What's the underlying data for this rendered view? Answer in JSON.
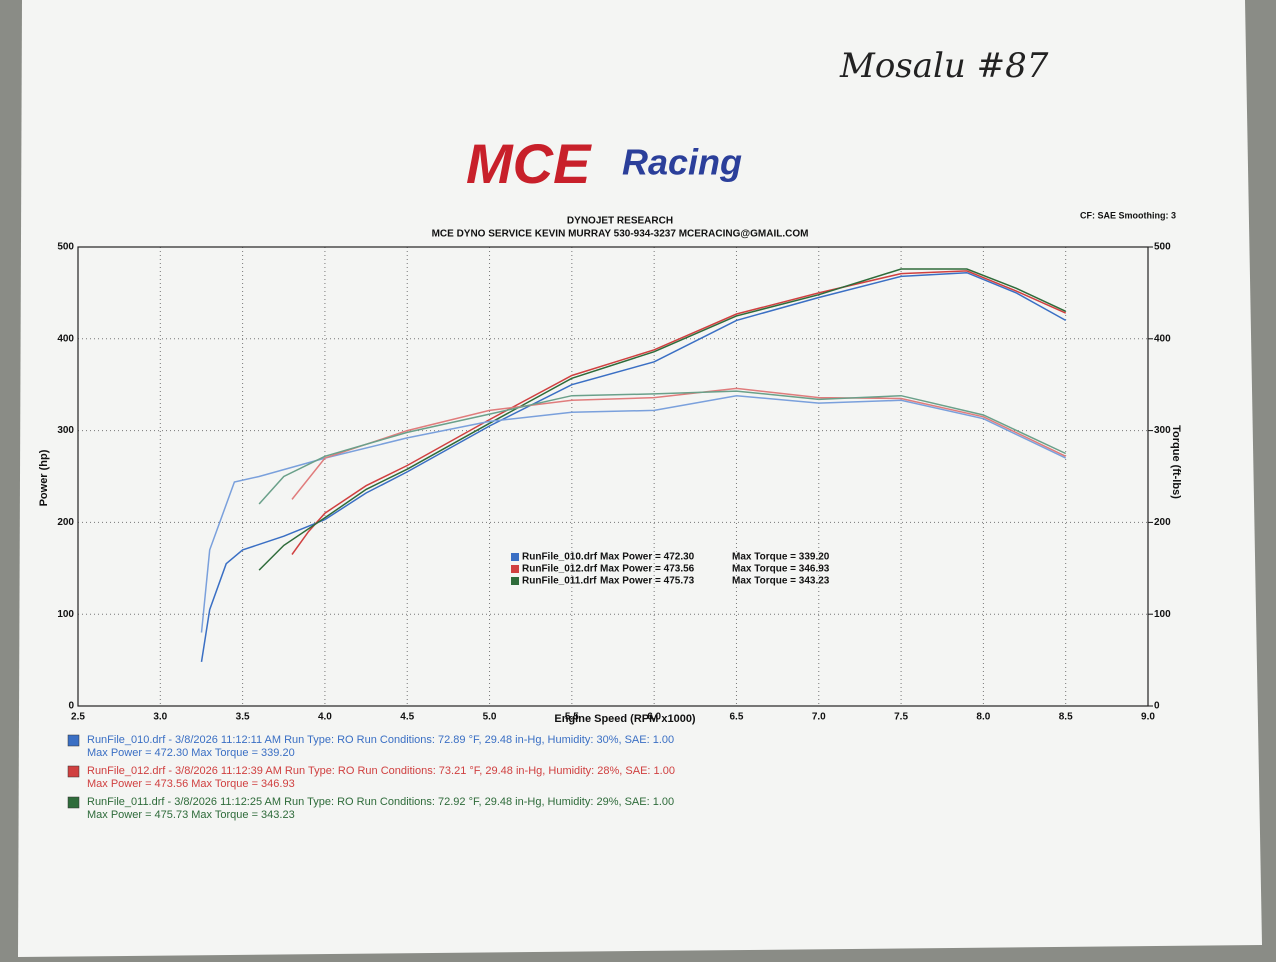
{
  "handwritten_note": "Mosalu #87",
  "logo": {
    "brand": "MCE",
    "script": "Racing"
  },
  "chart_data": {
    "type": "line",
    "title": "DYNOJET RESEARCH",
    "subtitle": "MCE DYNO SERVICE KEVIN MURRAY 530-934-3237 MCERACING@GMAIL.COM",
    "settings_note": "CF: SAE Smoothing: 3",
    "x_label": "Engine Speed (RPM x1000)",
    "y_label": "Power (hp)",
    "y2_label": "Torque (ft-lbs)",
    "grid": true,
    "xlim": [
      2.5,
      9.0
    ],
    "xticks": [
      2.5,
      {
        "value": 3,
        "label": "3.0"
      },
      3.5,
      {
        "value": 4,
        "label": "4.0"
      },
      4.5,
      {
        "value": 5,
        "label": "5.0"
      },
      5.5,
      {
        "value": 6,
        "label": "6.0"
      },
      6.5,
      {
        "value": 7,
        "label": "7.0"
      },
      7.5,
      {
        "value": 8,
        "label": "8.0"
      },
      8.5,
      {
        "value": 9,
        "label": "9.0"
      }
    ],
    "ylim": [
      0,
      500
    ],
    "yticks": [
      0,
      100,
      200,
      300,
      400,
      500
    ],
    "y2lim": [
      0,
      500
    ],
    "y2ticks": [
      0,
      100,
      200,
      300,
      400,
      500
    ],
    "series": [
      {
        "color": "#3a6fc4",
        "axis": "y",
        "x": [
          3.25,
          3.3,
          3.4,
          3.5,
          3.75,
          4.0,
          4.25,
          4.5,
          5.0,
          5.5,
          6.0,
          6.5,
          7.0,
          7.5,
          7.9,
          8.2,
          8.5
        ],
        "values": [
          48,
          105,
          155,
          170,
          185,
          203,
          232,
          255,
          305,
          350,
          375,
          420,
          445,
          468,
          472,
          450,
          420
        ]
      },
      {
        "color": "#d04040",
        "axis": "y",
        "x": [
          3.8,
          3.9,
          4.0,
          4.25,
          4.5,
          5.0,
          5.5,
          6.0,
          6.5,
          7.0,
          7.5,
          7.9,
          8.2,
          8.5
        ],
        "values": [
          165,
          190,
          210,
          240,
          262,
          312,
          360,
          388,
          427,
          450,
          471,
          474,
          452,
          428
        ]
      },
      {
        "color": "#2e6b3a",
        "axis": "y",
        "x": [
          3.6,
          3.75,
          4.0,
          4.25,
          4.5,
          5.0,
          5.5,
          6.0,
          6.5,
          7.0,
          7.5,
          7.9,
          8.2,
          8.5
        ],
        "values": [
          148,
          175,
          205,
          236,
          258,
          308,
          357,
          386,
          425,
          448,
          476,
          476,
          455,
          430
        ]
      },
      {
        "color": "#7aa0dc",
        "axis": "y2",
        "x": [
          3.25,
          3.3,
          3.45,
          3.6,
          4.0,
          4.5,
          5.0,
          5.5,
          6.0,
          6.5,
          7.0,
          7.5,
          8.0,
          8.5
        ],
        "values": [
          80,
          170,
          244,
          250,
          270,
          292,
          310,
          320,
          322,
          338,
          330,
          333,
          313,
          270
        ]
      },
      {
        "color": "#e07c7c",
        "axis": "y2",
        "x": [
          3.8,
          4.0,
          4.5,
          5.0,
          5.5,
          6.0,
          6.5,
          7.0,
          7.5,
          8.0,
          8.5
        ],
        "values": [
          225,
          270,
          300,
          322,
          333,
          336,
          346,
          336,
          335,
          315,
          272
        ]
      },
      {
        "color": "#6aa08a",
        "axis": "y2",
        "x": [
          3.6,
          3.75,
          4.0,
          4.5,
          5.0,
          5.5,
          6.0,
          6.5,
          7.0,
          7.5,
          8.0,
          8.5
        ],
        "values": [
          220,
          250,
          272,
          298,
          318,
          338,
          340,
          343,
          334,
          338,
          317,
          275
        ]
      }
    ],
    "legend_entries": [
      {
        "color": "#3a6fc4",
        "file": "RunFile_010.drf",
        "power": "Max Power = 472.30",
        "torque": "Max Torque = 339.20"
      },
      {
        "color": "#d04040",
        "file": "RunFile_012.drf",
        "power": "Max Power = 473.56",
        "torque": "Max Torque = 346.93"
      },
      {
        "color": "#2e6b3a",
        "file": "RunFile_011.drf",
        "power": "Max Power = 475.73",
        "torque": "Max Torque = 343.23"
      }
    ],
    "run_details": [
      {
        "color": "#3a6fc4",
        "line1": "RunFile_010.drf - 3/8/2026 11:12:11 AM  Run Type: RO  Run Conditions: 72.89 °F, 29.48 in-Hg,  Humidity: 30%, SAE: 1.00",
        "line2": "Max Power = 472.30  Max Torque = 339.20"
      },
      {
        "color": "#d04040",
        "line1": "RunFile_012.drf - 3/8/2026 11:12:39 AM  Run Type: RO  Run Conditions: 73.21 °F, 29.48 in-Hg,  Humidity: 28%, SAE: 1.00",
        "line2": "Max Power = 473.56  Max Torque = 346.93"
      },
      {
        "color": "#2e6b3a",
        "line1": "RunFile_011.drf - 3/8/2026 11:12:25 AM  Run Type: RO  Run Conditions: 72.92 °F, 29.48 in-Hg,  Humidity: 29%, SAE: 1.00",
        "line2": "Max Power = 475.73  Max Torque = 343.23"
      }
    ]
  }
}
